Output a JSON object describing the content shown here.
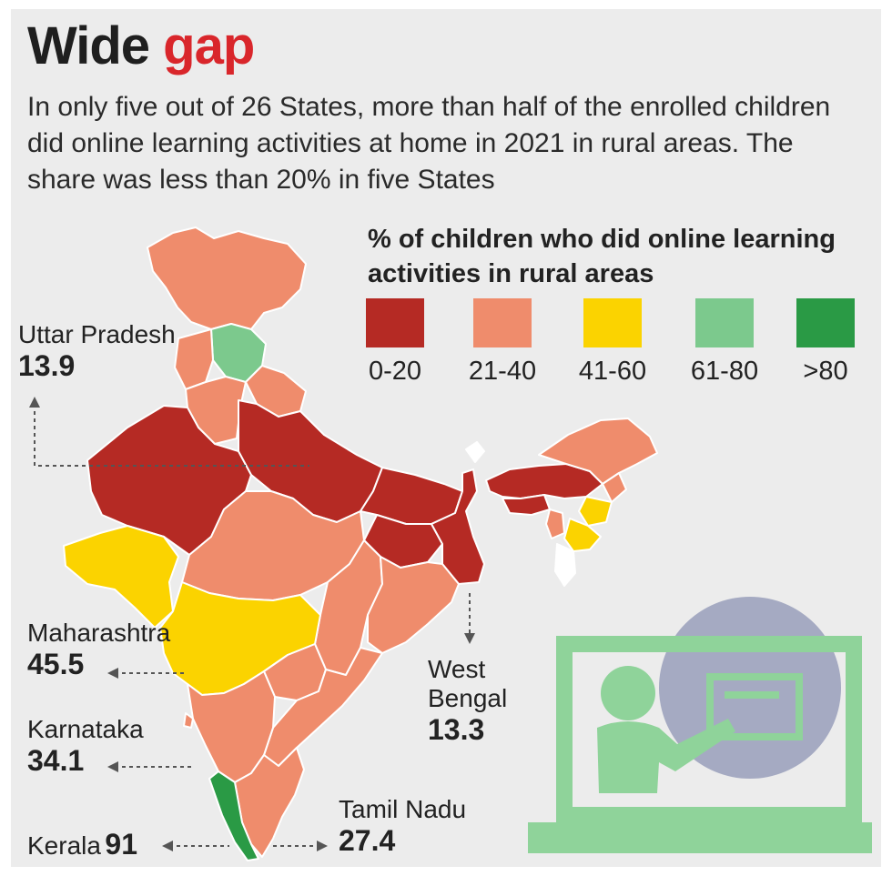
{
  "title": {
    "part1": "Wide",
    "part2": "gap"
  },
  "subtitle": "In only five out of 26 States, more than half of the enrolled children did online learning activities at home in 2021 in rural areas. The share was less than 20% in five States",
  "legend": {
    "title": "% of children who did online learning activities in rural areas",
    "bins": [
      {
        "label": "0-20",
        "color": "#b52a24"
      },
      {
        "label": "21-40",
        "color": "#ef8c6c"
      },
      {
        "label": "41-60",
        "color": "#fbd300"
      },
      {
        "label": "61-80",
        "color": "#7cc98d"
      },
      {
        "label": ">80",
        "color": "#2a9a45"
      }
    ]
  },
  "callouts": {
    "uttar_pradesh": {
      "name": "Uttar Pradesh",
      "value": "13.9"
    },
    "maharashtra": {
      "name": "Maharashtra",
      "value": "45.5"
    },
    "karnataka": {
      "name": "Karnataka",
      "value": "34.1"
    },
    "kerala": {
      "name": "Kerala",
      "value": "91"
    },
    "west_bengal": {
      "name": "West Bengal",
      "value": "13.3"
    },
    "tamil_nadu": {
      "name": "Tamil Nadu",
      "value": "27.4"
    }
  },
  "illustration": {
    "icon": "online-learning-laptop-icon",
    "color": "#8fd39a",
    "circle_color": "#a5aac2"
  }
}
